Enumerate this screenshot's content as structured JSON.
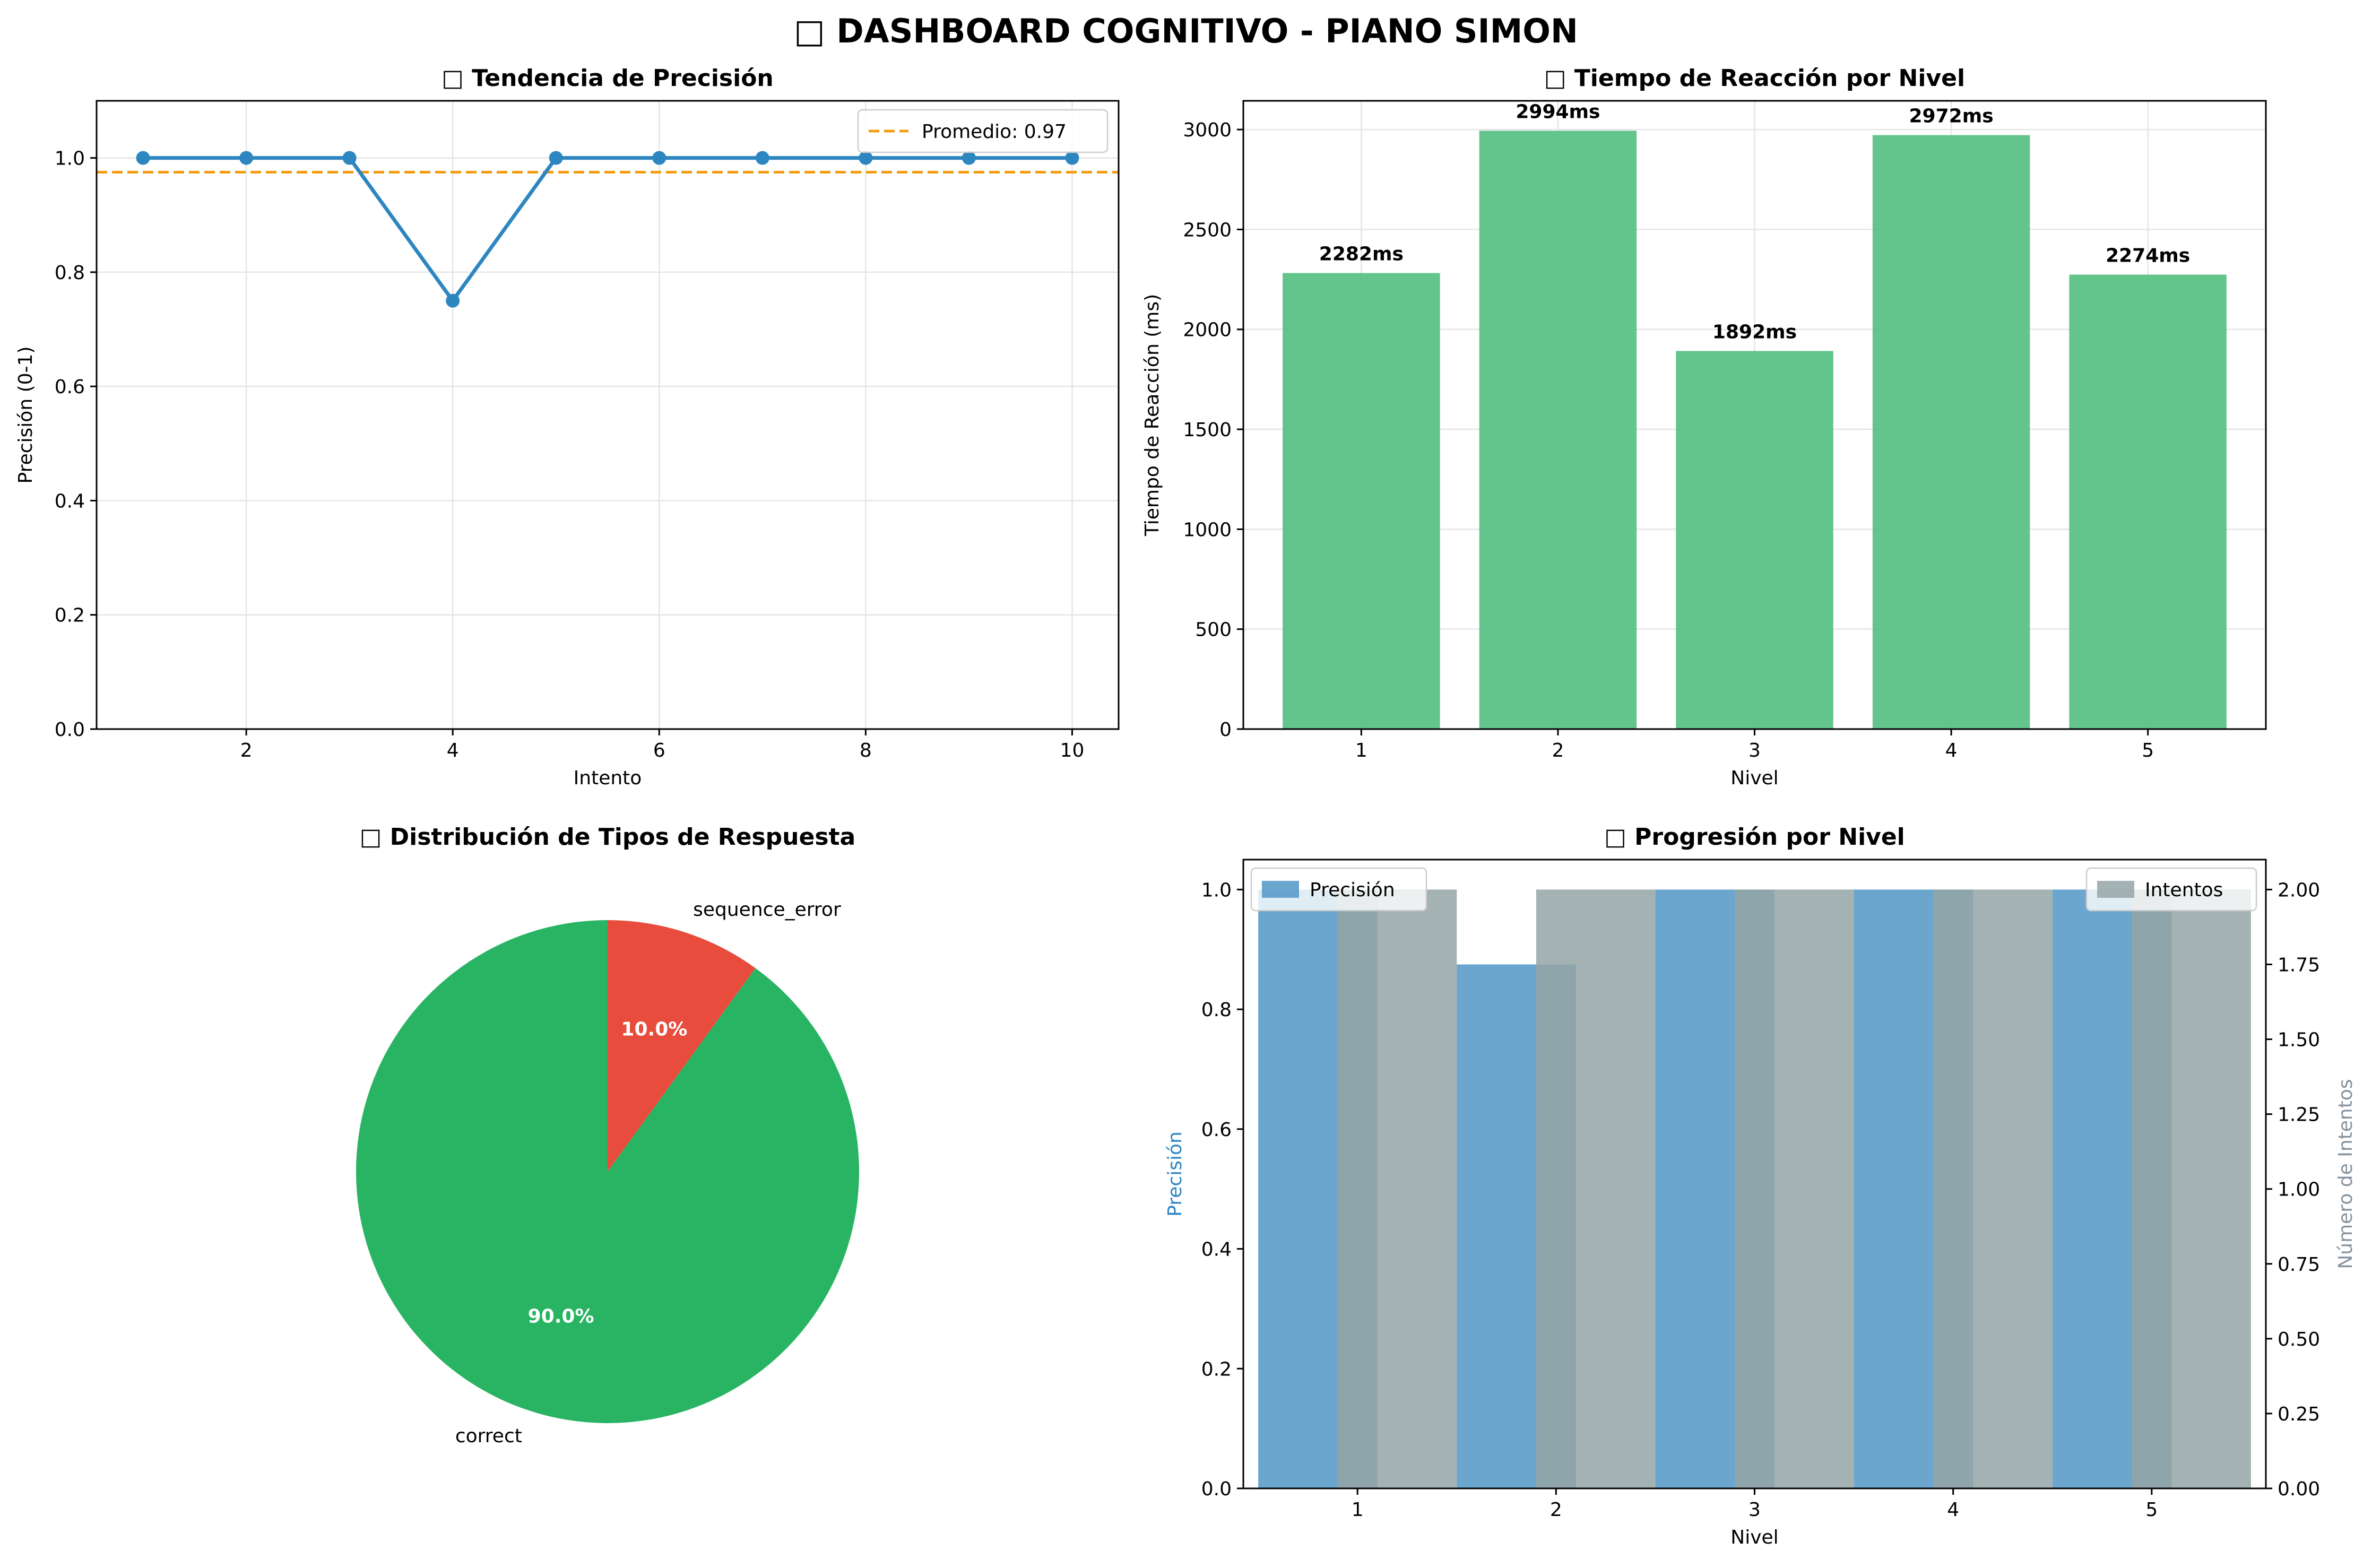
{
  "suptitle": "□ DASHBOARD COGNITIVO - PIANO SIMON",
  "chart_data": [
    {
      "type": "line",
      "title": "□ Tendencia de Precisión",
      "xlabel": "Intento",
      "ylabel": "Precisión (0-1)",
      "x": [
        1,
        2,
        3,
        4,
        5,
        6,
        7,
        8,
        9,
        10
      ],
      "y": [
        1.0,
        1.0,
        1.0,
        0.75,
        1.0,
        1.0,
        1.0,
        1.0,
        1.0,
        1.0
      ],
      "xlim": [
        0.55,
        10.45
      ],
      "ylim": [
        0,
        1.1
      ],
      "xticks": [
        2,
        4,
        6,
        8,
        10
      ],
      "yticks": [
        0.0,
        0.2,
        0.4,
        0.6,
        0.8,
        1.0
      ],
      "xtick_labels": [
        "2",
        "4",
        "6",
        "8",
        "10"
      ],
      "ytick_labels": [
        "0.0",
        "0.2",
        "0.4",
        "0.6",
        "0.8",
        "1.0"
      ],
      "reference_line": {
        "y": 0.975,
        "label": "Promedio: 0.97",
        "style": "dashed"
      },
      "legend": {
        "position": "top-right",
        "entries": [
          "Promedio: 0.97"
        ]
      },
      "grid": true,
      "colors": {
        "line": "#2e86c1",
        "reference": "#f39c12"
      }
    },
    {
      "type": "bar",
      "title": "□ Tiempo de Reacción por Nivel",
      "xlabel": "Nivel",
      "ylabel": "Tiempo de Reacción (ms)",
      "categories": [
        "1",
        "2",
        "3",
        "4",
        "5"
      ],
      "values": [
        2282,
        2994,
        1892,
        2972,
        2274
      ],
      "data_labels": [
        "2282ms",
        "2994ms",
        "1892ms",
        "2972ms",
        "2274ms"
      ],
      "ylim": [
        0,
        3143.7
      ],
      "yticks": [
        0,
        500,
        1000,
        1500,
        2000,
        2500,
        3000
      ],
      "ytick_labels": [
        "0",
        "500",
        "1000",
        "1500",
        "2000",
        "2500",
        "3000"
      ],
      "grid": true,
      "colors": {
        "bar": "#52be80"
      }
    },
    {
      "type": "pie",
      "title": "□ Distribución de Tipos de Respuesta",
      "labels": [
        "sequence_error",
        "correct"
      ],
      "values": [
        10.0,
        90.0
      ],
      "pct_labels": [
        "10.0%",
        "90.0%"
      ],
      "colors": [
        "#e74c3c",
        "#28b463"
      ]
    },
    {
      "type": "bar",
      "title": "□ Progresión por Nivel",
      "xlabel": "Nivel",
      "ylabel": "Precisión",
      "y2label": "Número de Intentos",
      "categories": [
        "1",
        "2",
        "3",
        "4",
        "5"
      ],
      "series": [
        {
          "name": "Precisión",
          "axis": "left",
          "values": [
            1.0,
            0.875,
            1.0,
            1.0,
            1.0
          ]
        },
        {
          "name": "Intentos",
          "axis": "right",
          "values": [
            2,
            2,
            2,
            2,
            2
          ]
        }
      ],
      "ylim": [
        0,
        1.05
      ],
      "y2lim": [
        0,
        2.1
      ],
      "yticks": [
        0.0,
        0.2,
        0.4,
        0.6,
        0.8,
        1.0
      ],
      "ytick_labels": [
        "0.0",
        "0.2",
        "0.4",
        "0.6",
        "0.8",
        "1.0"
      ],
      "y2ticks": [
        0.0,
        0.25,
        0.5,
        0.75,
        1.0,
        1.25,
        1.5,
        1.75,
        2.0
      ],
      "y2tick_labels": [
        "0.00",
        "0.25",
        "0.50",
        "0.75",
        "1.00",
        "1.25",
        "1.50",
        "1.75",
        "2.00"
      ],
      "legend": [
        {
          "position": "top-left",
          "entries": [
            "Precisión"
          ]
        },
        {
          "position": "top-right",
          "entries": [
            "Intentos"
          ]
        }
      ],
      "colors": {
        "precision": "#5499c7",
        "intentos": "#95a5a6",
        "ylabel": "#2e86c1",
        "y2label": "#85929e"
      }
    }
  ]
}
